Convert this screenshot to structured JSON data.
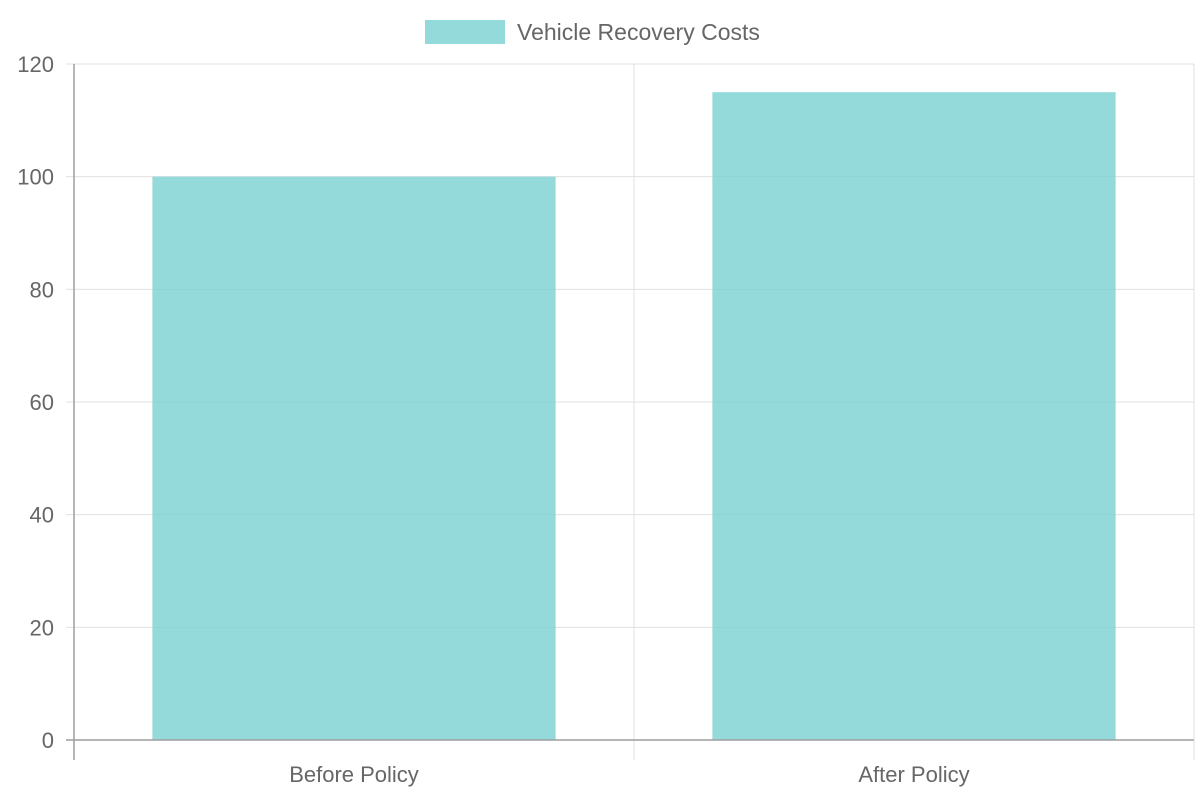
{
  "chart_data": {
    "type": "bar",
    "categories": [
      "Before Policy",
      "After Policy"
    ],
    "series": [
      {
        "name": "Vehicle Recovery Costs",
        "values": [
          100,
          115
        ],
        "color": "#81d3d3"
      }
    ],
    "title": "",
    "xlabel": "",
    "ylabel": "",
    "ylim": [
      0,
      120
    ],
    "yticks": [
      0,
      20,
      40,
      60,
      80,
      100,
      120
    ],
    "grid": true,
    "legend_position": "top-center"
  },
  "colors": {
    "grid": "#e0e0e0",
    "axis": "#9e9e9e",
    "text": "#666666"
  }
}
